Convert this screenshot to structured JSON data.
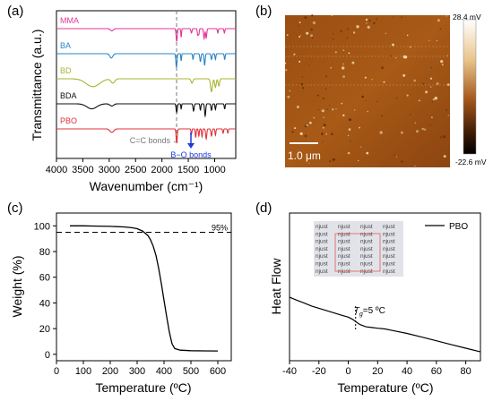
{
  "panels": {
    "a": {
      "label": "(a)",
      "chart_data": {
        "type": "line",
        "title": "",
        "xlabel": "Wavenumber (cm⁻¹)",
        "ylabel": "Transmittance (a.u.)",
        "xlim": [
          4000,
          600
        ],
        "xticks": [
          "4000",
          "3500",
          "3000",
          "2500",
          "2000",
          "1500",
          "1000"
        ],
        "series": [
          {
            "name": "MMA",
            "color": "#e0379b",
            "baseline": 0.0,
            "bands": [
              [
                2950,
                0.15,
                40
              ],
              [
                1720,
                0.9,
                15
              ],
              [
                1635,
                0.6,
                10
              ],
              [
                1440,
                0.3,
                15
              ],
              [
                1320,
                0.45,
                12
              ],
              [
                1300,
                0.4,
                12
              ],
              [
                1200,
                0.7,
                15
              ],
              [
                1160,
                0.65,
                15
              ],
              [
                940,
                0.3,
                12
              ],
              [
                815,
                0.3,
                12
              ]
            ]
          },
          {
            "name": "BA",
            "color": "#2a84c8",
            "baseline": 1.0,
            "bands": [
              [
                2960,
                0.3,
                40
              ],
              [
                1725,
                0.95,
                15
              ],
              [
                1635,
                0.5,
                10
              ],
              [
                1410,
                0.4,
                12
              ],
              [
                1270,
                0.55,
                15
              ],
              [
                1190,
                0.8,
                15
              ],
              [
                1060,
                0.4,
                15
              ],
              [
                985,
                0.4,
                12
              ],
              [
                810,
                0.4,
                12
              ]
            ]
          },
          {
            "name": "BD",
            "color": "#a9b433",
            "baseline": 2.0,
            "bands": [
              [
                3310,
                0.55,
                180
              ],
              [
                2930,
                0.3,
                50
              ],
              [
                1430,
                0.3,
                25
              ],
              [
                1060,
                0.9,
                25
              ],
              [
                985,
                0.6,
                20
              ],
              [
                920,
                0.5,
                20
              ]
            ]
          },
          {
            "name": "BDA",
            "color": "#111111",
            "baseline": 3.0,
            "bands": [
              [
                3330,
                0.35,
                130
              ],
              [
                2950,
                0.15,
                50
              ],
              [
                1720,
                0.6,
                15
              ],
              [
                1635,
                0.35,
                10
              ],
              [
                1400,
                0.5,
                15
              ],
              [
                1270,
                0.45,
                12
              ],
              [
                1180,
                0.85,
                15
              ],
              [
                1060,
                0.45,
                15
              ],
              [
                985,
                0.4,
                12
              ],
              [
                810,
                0.35,
                12
              ]
            ]
          },
          {
            "name": "PBO",
            "color": "#e0333c",
            "baseline": 4.0,
            "bands": [
              [
                2950,
                0.25,
                50
              ],
              [
                1720,
                1.0,
                15
              ],
              [
                1440,
                0.35,
                12
              ],
              [
                1360,
                0.6,
                12
              ],
              [
                1300,
                0.5,
                12
              ],
              [
                1240,
                0.55,
                12
              ],
              [
                1160,
                0.7,
                15
              ],
              [
                1060,
                0.5,
                15
              ],
              [
                985,
                0.45,
                12
              ],
              [
                840,
                0.3,
                12
              ],
              [
                750,
                0.3,
                12
              ]
            ]
          }
        ],
        "annotations": [
          {
            "text": "C=C bonds",
            "x": 1635,
            "color": "#777777"
          },
          {
            "text": "B−O bonds",
            "x": 1350,
            "color": "#1a3adb"
          }
        ]
      }
    },
    "b": {
      "label": "(b)",
      "scalebar": "1.0 μm",
      "colorbar_max": "28.4 mV",
      "colorbar_min": "-22.6 mV"
    },
    "c": {
      "label": "(c)",
      "chart_data": {
        "type": "line",
        "title": "",
        "xlabel": "Temperature (ºC)",
        "ylabel": "Weight (%)",
        "xlim": [
          0,
          650
        ],
        "ylim": [
          -5,
          110
        ],
        "xticks": [
          "0",
          "100",
          "200",
          "300",
          "400",
          "500",
          "600"
        ],
        "yticks": [
          "0",
          "20",
          "40",
          "60",
          "80",
          "100"
        ],
        "x": [
          50,
          100,
          150,
          200,
          250,
          280,
          300,
          320,
          340,
          350,
          360,
          370,
          380,
          390,
          400,
          410,
          420,
          430,
          440,
          460,
          500,
          550,
          600
        ],
        "y": [
          100,
          100,
          99.8,
          99.6,
          99.2,
          98.6,
          97.8,
          96.0,
          92.5,
          89.0,
          84.0,
          77.0,
          67.0,
          55.0,
          42.0,
          29.0,
          17.0,
          8.0,
          4.5,
          3.2,
          2.8,
          2.7,
          2.6
        ],
        "reference_line": {
          "y": 95,
          "label": "95%"
        }
      }
    },
    "d": {
      "label": "(d)",
      "chart_data": {
        "type": "line",
        "title": "",
        "xlabel": "Temperature (ºC)",
        "ylabel": "Heat Flow",
        "xlim": [
          -40,
          90
        ],
        "ylim": [
          0,
          1
        ],
        "xticks": [
          "-40",
          "-20",
          "0",
          "20",
          "40",
          "60",
          "80"
        ],
        "series": [
          {
            "name": "PBO",
            "color": "#000000"
          }
        ],
        "x": [
          -40,
          -35,
          -30,
          -25,
          -20,
          -15,
          -10,
          -5,
          0,
          3,
          5,
          8,
          12,
          16,
          20,
          25,
          30,
          40,
          50,
          60,
          70,
          80,
          90
        ],
        "y": [
          0.43,
          0.41,
          0.39,
          0.37,
          0.355,
          0.34,
          0.325,
          0.31,
          0.295,
          0.28,
          0.265,
          0.245,
          0.23,
          0.225,
          0.22,
          0.215,
          0.205,
          0.185,
          0.16,
          0.135,
          0.11,
          0.085,
          0.06
        ],
        "tg_label_prefix": "T",
        "tg_label_sub": "g",
        "tg_label_suffix": "=5 ºC",
        "tg_value": 5,
        "inset_text": "njust"
      }
    }
  }
}
